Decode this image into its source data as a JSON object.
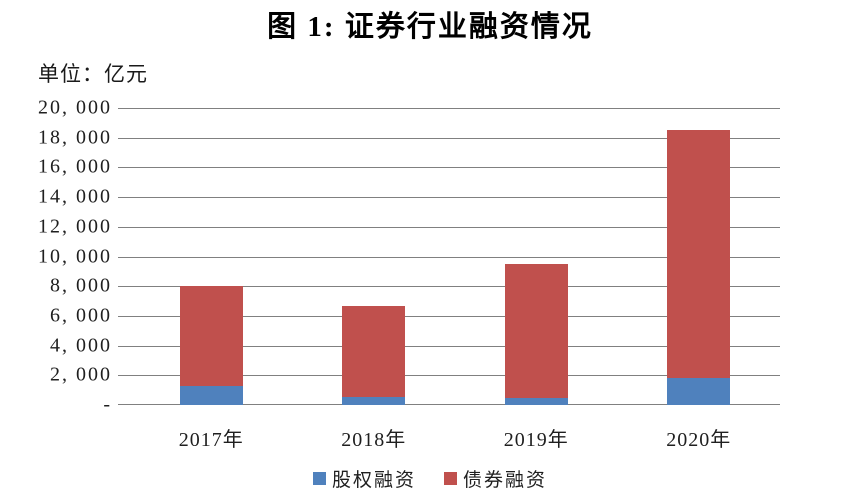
{
  "figure": {
    "title": "图 1: 证券行业融资情况",
    "unit_label": "单位：亿元"
  },
  "chart_data": {
    "type": "bar",
    "stacked": true,
    "title": "图 1: 证券行业融资情况",
    "unit": "亿元",
    "categories": [
      "2017年",
      "2018年",
      "2019年",
      "2020年"
    ],
    "category_keys": [
      "2017",
      "2018",
      "2019",
      "2020"
    ],
    "series": [
      {
        "key": "equity",
        "name": "股权融资",
        "color": "#4F81BD",
        "values": [
          1250,
          520,
          450,
          1850
        ]
      },
      {
        "key": "bond",
        "name": "债券融资",
        "color": "#C0504D",
        "values": [
          6750,
          6180,
          9050,
          16650
        ]
      }
    ],
    "stack_totals": [
      8000,
      6700,
      9500,
      18500
    ],
    "xlabel": "",
    "ylabel": "",
    "ylim": [
      0,
      20000
    ],
    "yticks": [
      {
        "value": 20000,
        "label": "20, 000"
      },
      {
        "value": 18000,
        "label": "18, 000"
      },
      {
        "value": 16000,
        "label": "16, 000"
      },
      {
        "value": 14000,
        "label": "14, 000"
      },
      {
        "value": 12000,
        "label": "12, 000"
      },
      {
        "value": 10000,
        "label": "10, 000"
      },
      {
        "value": 8000,
        "label": "8, 000"
      },
      {
        "value": 6000,
        "label": "6, 000"
      },
      {
        "value": 4000,
        "label": "4, 000"
      },
      {
        "value": 2000,
        "label": "2, 000"
      },
      {
        "value": 0,
        "label": "-"
      }
    ],
    "grid": true,
    "grid_color": "#808080",
    "legend_position": "bottom"
  }
}
